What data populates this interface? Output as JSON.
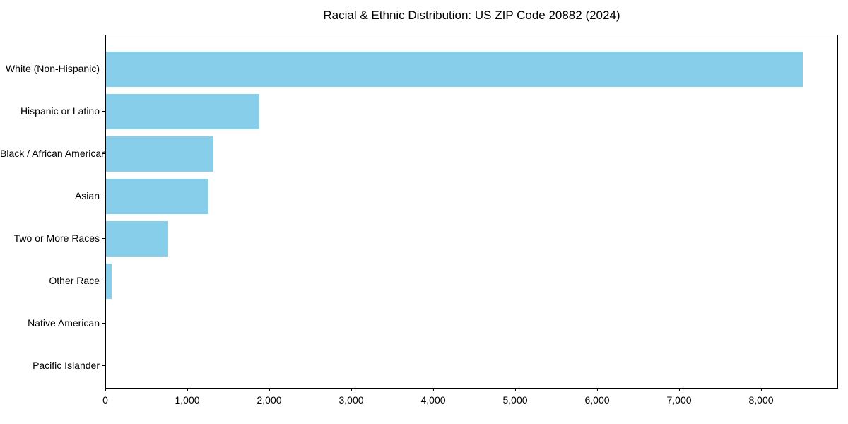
{
  "figure": {
    "background_color": "#ffffff",
    "axis_color": "#000000",
    "text_color": "#000000"
  },
  "chart_data": {
    "type": "bar",
    "orientation": "horizontal",
    "title": "Racial & Ethnic Distribution: US ZIP Code 20882 (2024)",
    "xlabel": "",
    "ylabel": "",
    "categories": [
      "White (Non-Hispanic)",
      "Hispanic or Latino",
      "Black / African American",
      "Asian",
      "Two or More Races",
      "Other Race",
      "Native American",
      "Pacific Islander"
    ],
    "values": [
      8500,
      1870,
      1310,
      1250,
      755,
      70,
      0,
      0
    ],
    "bar_color": "#87CEEB",
    "xlim": [
      0,
      8940
    ],
    "xtick_values": [
      0,
      1000,
      2000,
      3000,
      4000,
      5000,
      6000,
      7000,
      8000
    ],
    "xtick_labels": [
      "0",
      "1,000",
      "2,000",
      "3,000",
      "4,000",
      "5,000",
      "6,000",
      "7,000",
      "8,000"
    ],
    "grid": false,
    "legend": "none"
  }
}
